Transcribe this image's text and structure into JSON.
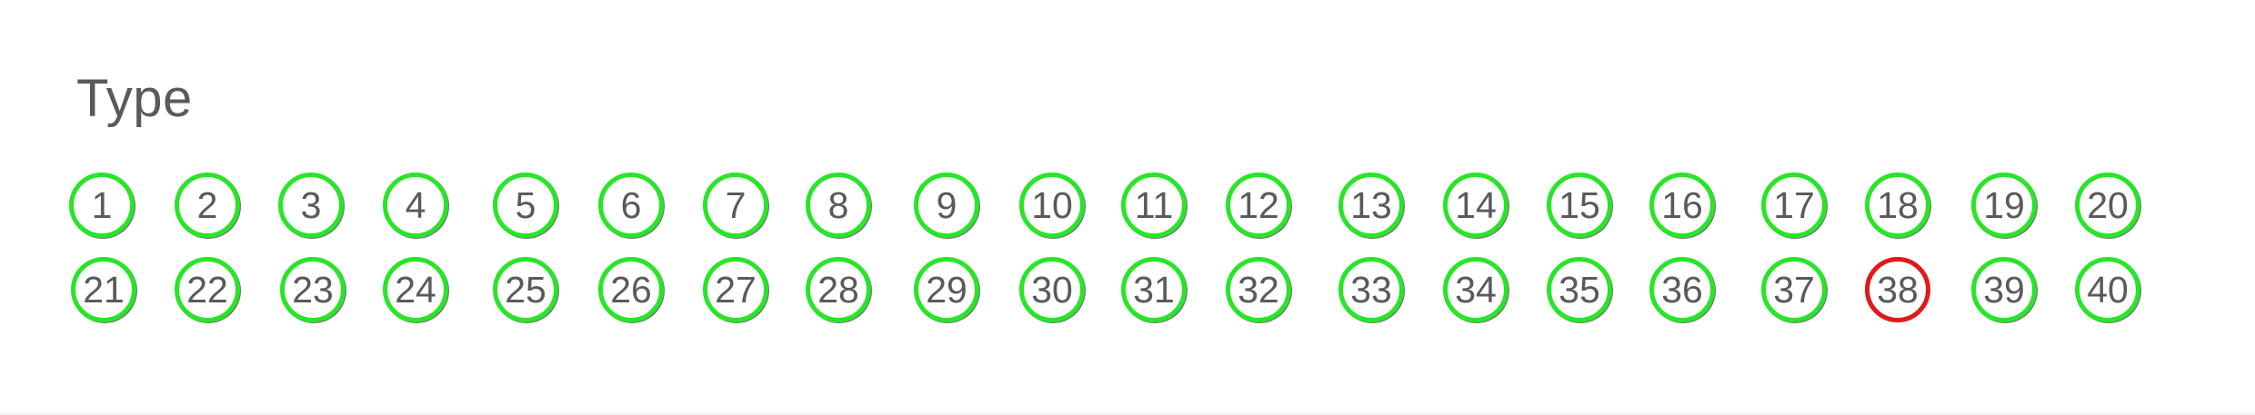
{
  "section": {
    "title": "Type"
  },
  "colors": {
    "correct": "#28e528",
    "incorrect": "#e01a1a",
    "text": "#5a5a5a"
  },
  "items": [
    {
      "label": "1",
      "status": "correct"
    },
    {
      "label": "2",
      "status": "correct"
    },
    {
      "label": "3",
      "status": "correct"
    },
    {
      "label": "4",
      "status": "correct"
    },
    {
      "label": "5",
      "status": "correct"
    },
    {
      "label": "6",
      "status": "correct"
    },
    {
      "label": "7",
      "status": "correct"
    },
    {
      "label": "8",
      "status": "correct"
    },
    {
      "label": "9",
      "status": "correct"
    },
    {
      "label": "10",
      "status": "correct"
    },
    {
      "label": "11",
      "status": "correct"
    },
    {
      "label": "12",
      "status": "correct"
    },
    {
      "label": "13",
      "status": "correct"
    },
    {
      "label": "14",
      "status": "correct"
    },
    {
      "label": "15",
      "status": "correct"
    },
    {
      "label": "16",
      "status": "correct"
    },
    {
      "label": "17",
      "status": "correct"
    },
    {
      "label": "18",
      "status": "correct"
    },
    {
      "label": "19",
      "status": "correct"
    },
    {
      "label": "20",
      "status": "correct"
    },
    {
      "label": "21",
      "status": "correct"
    },
    {
      "label": "22",
      "status": "correct"
    },
    {
      "label": "23",
      "status": "correct"
    },
    {
      "label": "24",
      "status": "correct"
    },
    {
      "label": "25",
      "status": "correct"
    },
    {
      "label": "26",
      "status": "correct"
    },
    {
      "label": "27",
      "status": "correct"
    },
    {
      "label": "28",
      "status": "correct"
    },
    {
      "label": "29",
      "status": "correct"
    },
    {
      "label": "30",
      "status": "correct"
    },
    {
      "label": "31",
      "status": "correct"
    },
    {
      "label": "32",
      "status": "correct"
    },
    {
      "label": "33",
      "status": "correct"
    },
    {
      "label": "34",
      "status": "correct"
    },
    {
      "label": "35",
      "status": "correct"
    },
    {
      "label": "36",
      "status": "correct"
    },
    {
      "label": "37",
      "status": "correct"
    },
    {
      "label": "38",
      "status": "incorrect"
    },
    {
      "label": "39",
      "status": "correct"
    },
    {
      "label": "40",
      "status": "correct"
    }
  ]
}
